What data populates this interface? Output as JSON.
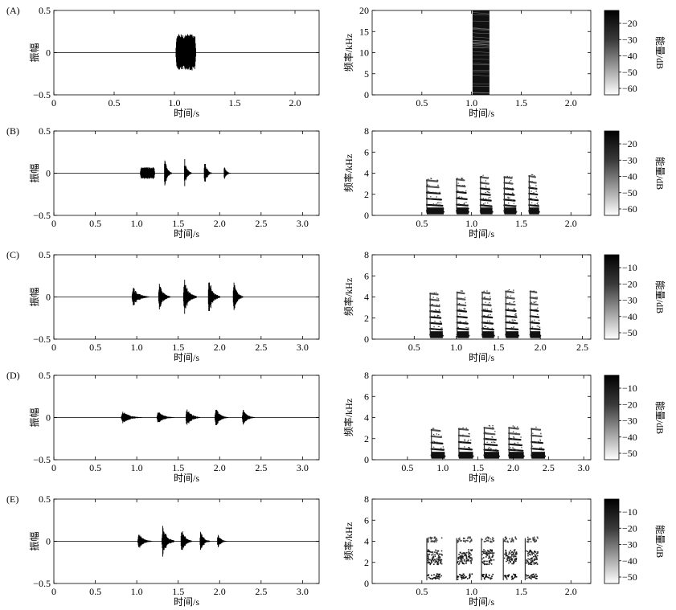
{
  "figure": {
    "rows": [
      {
        "label": "(A)",
        "waveform": {
          "type": "line",
          "xlabel": "时间/s",
          "ylabel": "振幅",
          "xlim": [
            0,
            2.2
          ],
          "ylim": [
            -0.5,
            0.5
          ],
          "xticks": [
            "0",
            "0.5",
            "1.0",
            "1.5",
            "2.0"
          ],
          "xtick_values": [
            0,
            0.5,
            1.0,
            1.5,
            2.0
          ],
          "yticks": [
            "0.5",
            "0",
            "−0.5"
          ],
          "ytick_values": [
            0.5,
            0,
            -0.5
          ],
          "bursts": [
            {
              "start": 1.01,
              "end": 1.18,
              "peak": 0.22,
              "shape": "block"
            }
          ]
        },
        "spectrogram": {
          "type": "heatmap",
          "xlabel": "时间/s",
          "ylabel": "频率/kHz",
          "xlim": [
            0,
            2.2
          ],
          "ylim": [
            0,
            20
          ],
          "xticks": [
            "0.5",
            "1.0",
            "1.5",
            "2.0"
          ],
          "xtick_values": [
            0.5,
            1.0,
            1.5,
            2.0
          ],
          "yticks": [
            "20",
            "15",
            "10",
            "5",
            "0"
          ],
          "ytick_values": [
            20,
            15,
            10,
            5,
            0
          ],
          "syllables": [
            {
              "start": 1.01,
              "end": 1.18,
              "fmax": 20,
              "style": "broadband"
            }
          ]
        },
        "colorbar": {
          "label": "能量/dB",
          "ticks": [
            "−20",
            "−30",
            "−40",
            "−50",
            "−60"
          ]
        }
      },
      {
        "label": "(B)",
        "waveform": {
          "type": "line",
          "xlabel": "时间/s",
          "ylabel": "振幅",
          "xlim": [
            0,
            3.2
          ],
          "ylim": [
            -0.5,
            0.5
          ],
          "xticks": [
            "0",
            "0.5",
            "1.0",
            "1.5",
            "2.0",
            "2.5",
            "3.0"
          ],
          "xtick_values": [
            0,
            0.5,
            1.0,
            1.5,
            2.0,
            2.5,
            3.0
          ],
          "yticks": [
            "0.5",
            "0",
            "−0.5"
          ],
          "ytick_values": [
            0.5,
            0,
            -0.5
          ],
          "bursts": [
            {
              "start": 1.04,
              "end": 1.22,
              "peak": 0.07,
              "shape": "block"
            },
            {
              "start": 1.33,
              "end": 1.42,
              "peak": 0.19,
              "shape": "decay"
            },
            {
              "start": 1.57,
              "end": 1.66,
              "peak": 0.18,
              "shape": "decay"
            },
            {
              "start": 1.81,
              "end": 1.9,
              "peak": 0.17,
              "shape": "decay"
            },
            {
              "start": 2.05,
              "end": 2.13,
              "peak": 0.09,
              "shape": "decay"
            }
          ]
        },
        "spectrogram": {
          "type": "heatmap",
          "xlabel": "时间/s",
          "ylabel": "频率/kHz",
          "xlim": [
            0,
            2.2
          ],
          "ylim": [
            0,
            8
          ],
          "xticks": [
            "0.5",
            "1.0",
            "1.5",
            "2.0"
          ],
          "xtick_values": [
            0.5,
            1.0,
            1.5,
            2.0
          ],
          "yticks": [
            "8",
            "6",
            "4",
            "2",
            "0"
          ],
          "ytick_values": [
            8,
            6,
            4,
            2,
            0
          ],
          "syllables": [
            {
              "start": 0.55,
              "end": 0.72,
              "fmax": 3.4,
              "style": "harmonic"
            },
            {
              "start": 0.85,
              "end": 0.97,
              "fmax": 3.5,
              "style": "harmonic"
            },
            {
              "start": 1.09,
              "end": 1.21,
              "fmax": 3.7,
              "style": "harmonic"
            },
            {
              "start": 1.33,
              "end": 1.45,
              "fmax": 3.7,
              "style": "harmonic"
            },
            {
              "start": 1.58,
              "end": 1.68,
              "fmax": 3.8,
              "style": "harmonic"
            }
          ]
        },
        "colorbar": {
          "label": "能量/dB",
          "ticks": [
            "−20",
            "−30",
            "−40",
            "−50",
            "−60"
          ]
        }
      },
      {
        "label": "(C)",
        "waveform": {
          "type": "line",
          "xlabel": "时间/s",
          "ylabel": "振幅",
          "xlim": [
            0,
            3.2
          ],
          "ylim": [
            -0.5,
            0.5
          ],
          "xticks": [
            "0",
            "0.5",
            "1.0",
            "1.5",
            "2.0",
            "2.5",
            "3.0"
          ],
          "xtick_values": [
            0,
            0.5,
            1.0,
            1.5,
            2.0,
            2.5,
            3.0
          ],
          "yticks": [
            "0.5",
            "0",
            "−0.5"
          ],
          "ytick_values": [
            0.5,
            0,
            -0.5
          ],
          "bursts": [
            {
              "start": 0.94,
              "end": 1.15,
              "peak": 0.12,
              "shape": "decay"
            },
            {
              "start": 1.26,
              "end": 1.4,
              "peak": 0.18,
              "shape": "decay"
            },
            {
              "start": 1.56,
              "end": 1.72,
              "peak": 0.23,
              "shape": "decay"
            },
            {
              "start": 1.86,
              "end": 2.0,
              "peak": 0.24,
              "shape": "decay"
            },
            {
              "start": 2.16,
              "end": 2.28,
              "peak": 0.21,
              "shape": "decay"
            }
          ]
        },
        "spectrogram": {
          "type": "heatmap",
          "xlabel": "时间/s",
          "ylabel": "频率/kHz",
          "xlim": [
            0,
            2.6
          ],
          "ylim": [
            0,
            8
          ],
          "xticks": [
            "0.5",
            "1.0",
            "1.5",
            "2.0",
            "2.5"
          ],
          "xtick_values": [
            0.5,
            1.0,
            1.5,
            2.0,
            2.5
          ],
          "yticks": [
            "8",
            "6",
            "4",
            "2",
            "0"
          ],
          "ytick_values": [
            8,
            6,
            4,
            2,
            0
          ],
          "syllables": [
            {
              "start": 0.69,
              "end": 0.84,
              "fmax": 4.4,
              "style": "harmonic"
            },
            {
              "start": 1.01,
              "end": 1.15,
              "fmax": 4.5,
              "style": "harmonic"
            },
            {
              "start": 1.31,
              "end": 1.45,
              "fmax": 4.5,
              "style": "harmonic"
            },
            {
              "start": 1.59,
              "end": 1.74,
              "fmax": 4.6,
              "style": "harmonic"
            },
            {
              "start": 1.88,
              "end": 2.0,
              "fmax": 4.6,
              "style": "harmonic"
            }
          ]
        },
        "colorbar": {
          "label": "能量/dB",
          "ticks": [
            "−10",
            "−20",
            "−30",
            "−40",
            "−50"
          ]
        }
      },
      {
        "label": "(D)",
        "waveform": {
          "type": "line",
          "xlabel": "时间/s",
          "ylabel": "振幅",
          "xlim": [
            0,
            3.2
          ],
          "ylim": [
            -0.5,
            0.5
          ],
          "xticks": [
            "0",
            "0.5",
            "1.0",
            "1.5",
            "2.0",
            "2.5",
            "3.0"
          ],
          "xtick_values": [
            0,
            0.5,
            1.0,
            1.5,
            2.0,
            2.5,
            3.0
          ],
          "yticks": [
            "0.5",
            "0",
            "−0.5"
          ],
          "ytick_values": [
            0.5,
            0,
            -0.5
          ],
          "bursts": [
            {
              "start": 0.81,
              "end": 1.06,
              "peak": 0.08,
              "shape": "decay"
            },
            {
              "start": 1.24,
              "end": 1.45,
              "peak": 0.08,
              "shape": "decay"
            },
            {
              "start": 1.59,
              "end": 1.76,
              "peak": 0.12,
              "shape": "decay"
            },
            {
              "start": 1.94,
              "end": 2.1,
              "peak": 0.12,
              "shape": "decay"
            },
            {
              "start": 2.27,
              "end": 2.42,
              "peak": 0.1,
              "shape": "decay"
            }
          ]
        },
        "spectrogram": {
          "type": "heatmap",
          "xlabel": "时间/s",
          "ylabel": "频率/kHz",
          "xlim": [
            0,
            3.1
          ],
          "ylim": [
            0,
            8
          ],
          "xticks": [
            "0.5",
            "1.0",
            "1.5",
            "2.0",
            "2.5",
            "3.0"
          ],
          "xtick_values": [
            0.5,
            1.0,
            1.5,
            2.0,
            2.5,
            3.0
          ],
          "yticks": [
            "8",
            "6",
            "4",
            "2",
            "0"
          ],
          "ytick_values": [
            8,
            6,
            4,
            2,
            0
          ],
          "syllables": [
            {
              "start": 0.84,
              "end": 1.03,
              "fmax": 2.9,
              "style": "harmonic"
            },
            {
              "start": 1.23,
              "end": 1.43,
              "fmax": 3.0,
              "style": "harmonic"
            },
            {
              "start": 1.59,
              "end": 1.8,
              "fmax": 3.1,
              "style": "harmonic"
            },
            {
              "start": 1.94,
              "end": 2.15,
              "fmax": 3.1,
              "style": "harmonic"
            },
            {
              "start": 2.26,
              "end": 2.45,
              "fmax": 3.0,
              "style": "harmonic"
            }
          ]
        },
        "colorbar": {
          "label": "能量/dB",
          "ticks": [
            "−10",
            "−20",
            "−30",
            "−40",
            "−50"
          ]
        }
      },
      {
        "label": "(E)",
        "waveform": {
          "type": "line",
          "xlabel": "时间/s",
          "ylabel": "振幅",
          "xlim": [
            0,
            3.2
          ],
          "ylim": [
            -0.5,
            0.5
          ],
          "xticks": [
            "0",
            "0.5",
            "1.0",
            "1.5",
            "2.0",
            "2.5",
            "3.0"
          ],
          "xtick_values": [
            0,
            0.5,
            1.0,
            1.5,
            2.0,
            2.5,
            3.0
          ],
          "yticks": [
            "0.5",
            "0",
            "−0.5"
          ],
          "ytick_values": [
            0.5,
            0,
            -0.5
          ],
          "bursts": [
            {
              "start": 1.01,
              "end": 1.18,
              "peak": 0.1,
              "shape": "decay"
            },
            {
              "start": 1.3,
              "end": 1.45,
              "peak": 0.2,
              "shape": "decay"
            },
            {
              "start": 1.53,
              "end": 1.66,
              "peak": 0.17,
              "shape": "decay"
            },
            {
              "start": 1.76,
              "end": 1.88,
              "peak": 0.14,
              "shape": "decay"
            },
            {
              "start": 1.97,
              "end": 2.08,
              "peak": 0.09,
              "shape": "decay"
            }
          ]
        },
        "spectrogram": {
          "type": "heatmap",
          "xlabel": "时间/s",
          "ylabel": "频率/kHz",
          "xlim": [
            0,
            2.2
          ],
          "ylim": [
            0,
            8
          ],
          "xticks": [
            "0.5",
            "1.0",
            "1.5",
            "2.0"
          ],
          "xtick_values": [
            0.5,
            1.0,
            1.5,
            2.0
          ],
          "yticks": [
            "8",
            "6",
            "4",
            "2",
            "0"
          ],
          "ytick_values": [
            8,
            6,
            4,
            2,
            0
          ],
          "syllables": [
            {
              "start": 0.55,
              "end": 0.7,
              "fmax": 4.3,
              "style": "formant"
            },
            {
              "start": 0.85,
              "end": 1.0,
              "fmax": 4.3,
              "style": "formant"
            },
            {
              "start": 1.1,
              "end": 1.22,
              "fmax": 4.3,
              "style": "formant"
            },
            {
              "start": 1.32,
              "end": 1.45,
              "fmax": 4.3,
              "style": "formant"
            },
            {
              "start": 1.54,
              "end": 1.66,
              "fmax": 4.3,
              "style": "formant"
            }
          ]
        },
        "colorbar": {
          "label": "能量/dB",
          "ticks": [
            "−10",
            "−20",
            "−30",
            "−40",
            "−50"
          ]
        }
      }
    ]
  }
}
